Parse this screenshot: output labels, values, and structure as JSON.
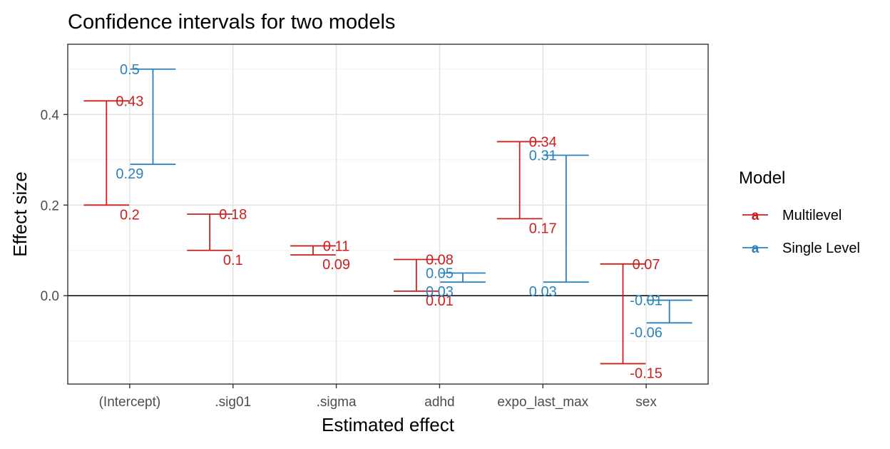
{
  "chart_data": {
    "type": "errorbar",
    "title": "Confidence intervals for two models",
    "xlabel": "Estimated effect",
    "ylabel": "Effect size",
    "categories": [
      "(Intercept)",
      ".sig01",
      ".sigma",
      "adhd",
      "expo_last_max",
      "sex"
    ],
    "ylim": [
      -0.195,
      0.555
    ],
    "y_ticks": [
      0.0,
      0.2,
      0.4
    ],
    "y_tick_labels": [
      "0.0",
      "0.2",
      "0.4"
    ],
    "hline_y": 0,
    "grid": true,
    "legend_position": "right",
    "legend_title": "Model",
    "legend_key_glyph": "a",
    "series": [
      {
        "name": "Multilevel",
        "color": "#cc1f1f",
        "lower": [
          0.2,
          0.1,
          0.09,
          0.01,
          0.17,
          -0.15
        ],
        "upper": [
          0.43,
          0.18,
          0.11,
          0.08,
          0.34,
          0.07
        ],
        "lower_labels": [
          "0.2",
          "0.1",
          "0.09",
          "0.01",
          "0.17",
          "-0.15"
        ],
        "upper_labels": [
          "0.43",
          "0.18",
          "0.11",
          "0.08",
          "0.34",
          "0.07"
        ]
      },
      {
        "name": "Single Level",
        "color": "#2b83ba",
        "lower": [
          0.29,
          null,
          null,
          0.03,
          0.03,
          -0.06
        ],
        "upper": [
          0.5,
          null,
          null,
          0.05,
          0.31,
          -0.01
        ],
        "lower_labels": [
          "0.29",
          null,
          null,
          "0.03",
          "0.03",
          "-0.06"
        ],
        "upper_labels": [
          "0.5",
          null,
          null,
          "0.05",
          "0.31",
          "-0.01"
        ]
      }
    ]
  }
}
